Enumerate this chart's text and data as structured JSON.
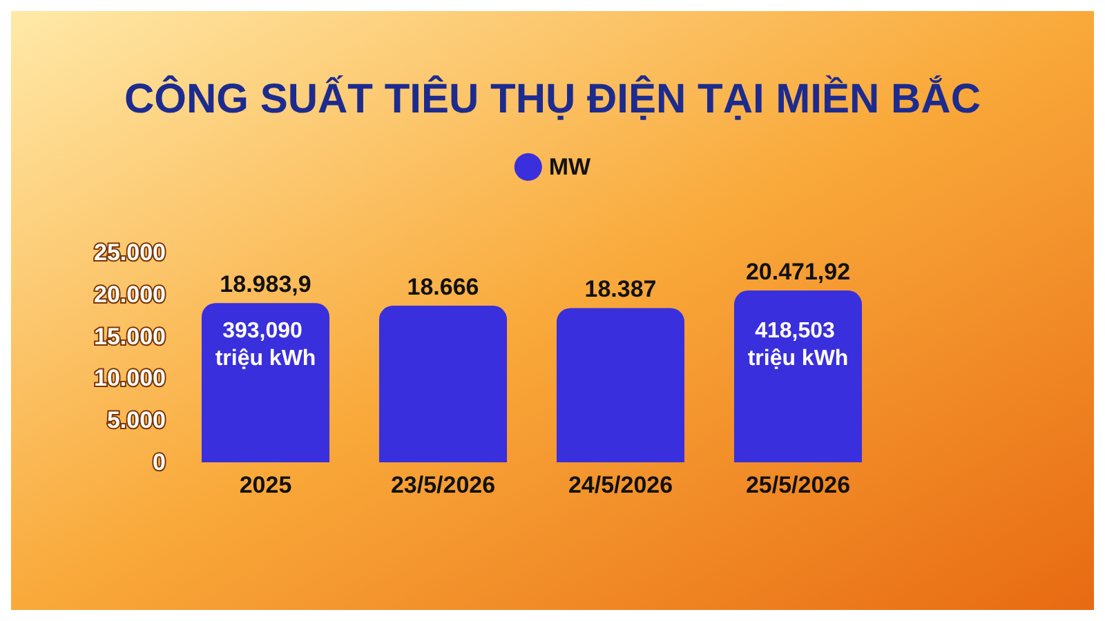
{
  "chart_data": {
    "type": "bar",
    "title": "CÔNG SUẤT TIÊU THỤ ĐIỆN TẠI MIỀN BẮC",
    "categories": [
      "2025",
      "23/5/2026",
      "24/5/2026",
      "25/5/2026"
    ],
    "series": [
      {
        "name": "MW",
        "color": "#3a2fdc",
        "values": [
          18983.9,
          18666,
          18387,
          20471.92
        ],
        "value_labels": [
          "18.983,9",
          "18.666",
          "18.387",
          "20.471,92"
        ]
      }
    ],
    "ylim": [
      0,
      25000
    ],
    "yticks": [
      {
        "value": 0,
        "label": "0"
      },
      {
        "value": 5000,
        "label": "5.000"
      },
      {
        "value": 10000,
        "label": "10.000"
      },
      {
        "value": 15000,
        "label": "15.000"
      },
      {
        "value": 20000,
        "label": "20.000"
      },
      {
        "value": 25000,
        "label": "25.000"
      }
    ],
    "annotations": [
      "393,090 triệu kWh",
      "418,503 triệu kWh"
    ],
    "grid": false,
    "legend": "top"
  }
}
